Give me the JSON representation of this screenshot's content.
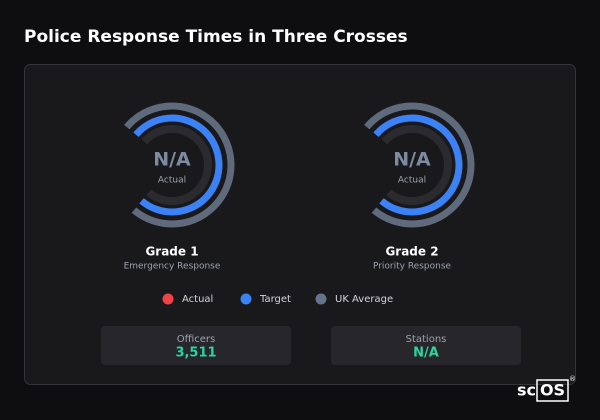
{
  "title": "Police Response Times in Three Crosses",
  "gauges": [
    {
      "value": "N/A",
      "value_caption": "Actual",
      "name": "Grade 1",
      "subtitle": "Emergency Response"
    },
    {
      "value": "N/A",
      "value_caption": "Actual",
      "name": "Grade 2",
      "subtitle": "Priority Response"
    }
  ],
  "legend": [
    {
      "name": "Actual",
      "color": "#ef4444"
    },
    {
      "name": "Target",
      "color": "#3b82f6"
    },
    {
      "name": "UK Average",
      "color": "#64748b"
    }
  ],
  "stats": [
    {
      "label": "Officers",
      "value": "3,511"
    },
    {
      "label": "Stations",
      "value": "N/A"
    }
  ],
  "brand": {
    "prefix": "sc",
    "boxed": "OS",
    "mark": "®"
  }
}
